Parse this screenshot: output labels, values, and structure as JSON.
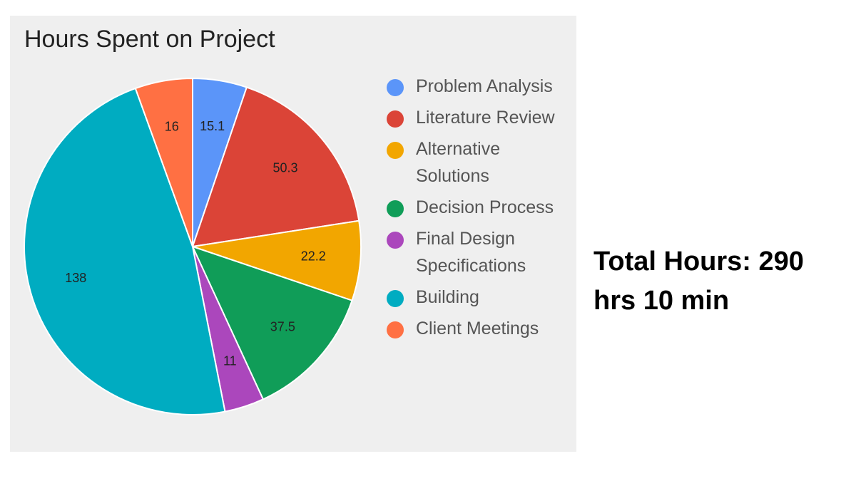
{
  "chart_data": {
    "type": "pie",
    "title": "Hours Spent on Project",
    "start_angle_deg": 0,
    "direction": "clockwise",
    "legend_position": "right",
    "slices": [
      {
        "label": "Problem Analysis",
        "legend_label": "Problem Analysis",
        "value": 15.1,
        "data_label": "15.1",
        "color": "#5b95f9"
      },
      {
        "label": "Literature Review",
        "legend_label": "Literature Review",
        "value": 50.3,
        "data_label": "50.3",
        "color": "#db4437"
      },
      {
        "label": "Alternative Solutions",
        "legend_label": "Alternative Solutions",
        "value": 22.2,
        "data_label": "22.2",
        "color": "#f2a600"
      },
      {
        "label": "Decision Process",
        "legend_label": "Decision Process",
        "value": 37.5,
        "data_label": "37.5",
        "color": "#109d58"
      },
      {
        "label": "Final Design Specifications",
        "legend_label": "Final Design Specifications",
        "value": 11,
        "data_label": "11",
        "color": "#ab47bc"
      },
      {
        "label": "Building",
        "legend_label": "Building",
        "value": 138,
        "data_label": "138",
        "color": "#00acc1"
      },
      {
        "label": "Client Meetings",
        "legend_label": "Client Meetings",
        "value": 16,
        "data_label": "16",
        "color": "#ff7043"
      }
    ]
  },
  "total": {
    "text": "Total Hours: 290 hrs 10 min"
  }
}
